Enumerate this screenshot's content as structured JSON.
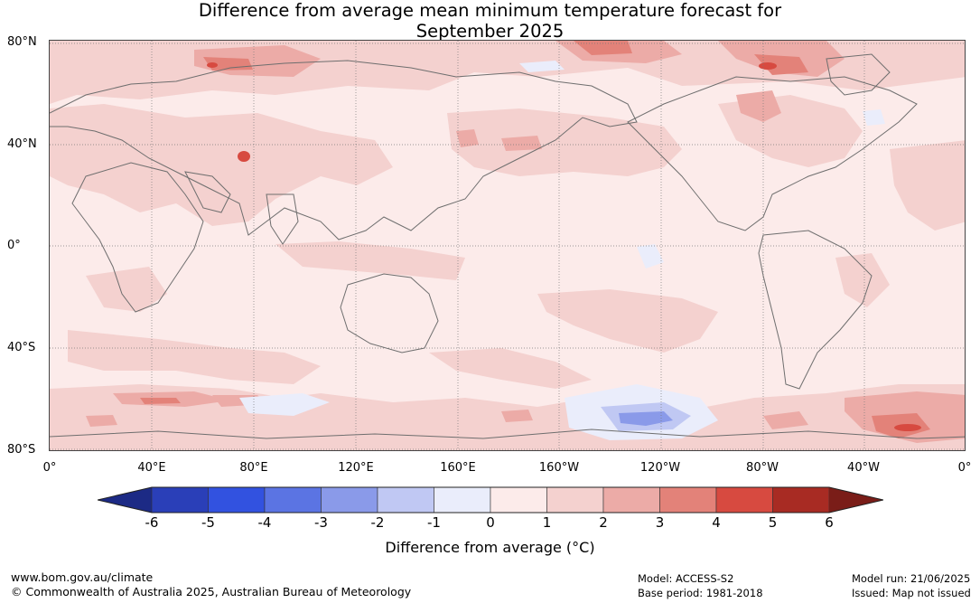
{
  "header": {
    "title_line1": "Difference from average mean minimum temperature forecast for",
    "title_line2": "September 2025"
  },
  "latitude_labels": [
    "80°N",
    "40°N",
    "0°",
    "40°S",
    "80°S"
  ],
  "longitude_labels": [
    "0°",
    "40°E",
    "80°E",
    "120°E",
    "160°E",
    "160°W",
    "120°W",
    "80°W",
    "40°W",
    "0°"
  ],
  "colorbar": {
    "ticks": [
      "-6",
      "-5",
      "-4",
      "-3",
      "-2",
      "-1",
      "0",
      "1",
      "2",
      "3",
      "4",
      "5",
      "6"
    ],
    "colors": [
      "#1c2a85",
      "#2a3fb8",
      "#3252e0",
      "#5b74e3",
      "#8a9ae9",
      "#c0c8f3",
      "#eaedfb",
      "#fcebea",
      "#f4d1cf",
      "#ecaba7",
      "#e38279",
      "#d74a40",
      "#a82b23",
      "#7a1d18"
    ],
    "label": "Difference from average (°C)"
  },
  "map_colors": {
    "ocean_base": "#fcebea",
    "warm_1": "#f4d1cf",
    "warm_2": "#ecaba7",
    "warm_3": "#e38279",
    "warm_4": "#d74a40",
    "cool_1": "#eaedfb",
    "cool_2": "#c0c8f3",
    "cool_3": "#8a9ae9",
    "coast": "#6e6e6e",
    "grid": "#7a7a7a"
  },
  "footer": {
    "website": "www.bom.gov.au/climate",
    "copyright": "© Commonwealth of Australia 2025, Australian Bureau of Meteorology",
    "model": "Model: ACCESS-S2",
    "base_period": "Base period: 1981-2018",
    "model_run": "Model run: 21/06/2025",
    "issued": "Issued: Map not issued"
  }
}
